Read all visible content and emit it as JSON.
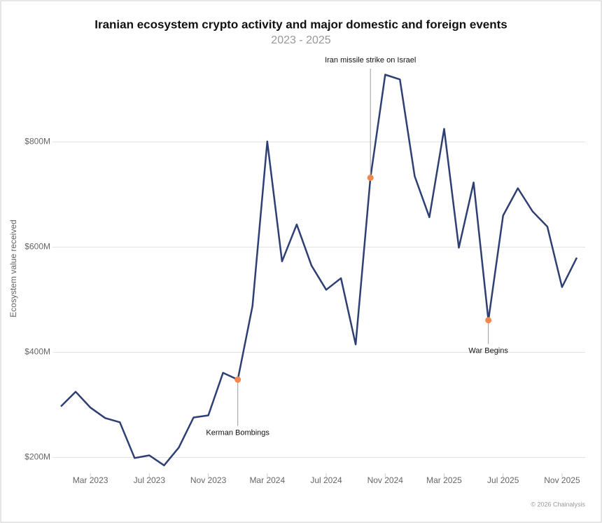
{
  "chart_data": {
    "type": "line",
    "title": "Iranian ecosystem crypto activity and major domestic and foreign events",
    "subtitle": "2023 - 2025",
    "y_label": "Ecosystem value received",
    "footer": "© 2026 Chainalysis",
    "x": [
      "2023-01",
      "2023-02",
      "2023-03",
      "2023-04",
      "2023-05",
      "2023-06",
      "2023-07",
      "2023-08",
      "2023-09",
      "2023-10",
      "2023-11",
      "2023-12",
      "2024-01",
      "2024-02",
      "2024-03",
      "2024-04",
      "2024-05",
      "2024-06",
      "2024-07",
      "2024-08",
      "2024-09",
      "2024-10",
      "2024-11",
      "2024-12",
      "2025-01",
      "2025-02",
      "2025-03",
      "2025-04",
      "2025-05",
      "2025-06",
      "2025-07",
      "2025-08",
      "2025-09",
      "2025-10",
      "2025-11",
      "2025-12"
    ],
    "series": [
      {
        "name": "Ecosystem value received",
        "color": "#2e3f73",
        "values": [
          297,
          325,
          295,
          275,
          267,
          199,
          204,
          185,
          219,
          276,
          280,
          361,
          348,
          488,
          801,
          573,
          643,
          565,
          519,
          541,
          415,
          732,
          928,
          919,
          735,
          657,
          825,
          599,
          723,
          461,
          660,
          712,
          668,
          639,
          524,
          580
        ]
      }
    ],
    "xlim": [
      "2023-01",
      "2025-12"
    ],
    "xticks": [
      {
        "value": "2023-03",
        "label": "Mar 2023"
      },
      {
        "value": "2023-07",
        "label": "Jul 2023"
      },
      {
        "value": "2023-11",
        "label": "Nov 2023"
      },
      {
        "value": "2024-03",
        "label": "Mar 2024"
      },
      {
        "value": "2024-07",
        "label": "Jul 2024"
      },
      {
        "value": "2024-11",
        "label": "Nov 2024"
      },
      {
        "value": "2025-03",
        "label": "Mar 2025"
      },
      {
        "value": "2025-07",
        "label": "Jul 2025"
      },
      {
        "value": "2025-11",
        "label": "Nov 2025"
      }
    ],
    "ylim": [
      170,
      970
    ],
    "yticks": [
      {
        "value": 200,
        "label": "$200M"
      },
      {
        "value": 400,
        "label": "$400M"
      },
      {
        "value": 600,
        "label": "$600M"
      },
      {
        "value": 800,
        "label": "$800M"
      }
    ],
    "grid": true,
    "annotations": [
      {
        "x": "2024-01",
        "label": "Kerman Bombings"
      },
      {
        "x": "2024-10",
        "label": "Iran missile strike on Israel"
      },
      {
        "x": "2025-06",
        "label": "War Begins"
      }
    ],
    "annotation_color": "#f4874b"
  }
}
